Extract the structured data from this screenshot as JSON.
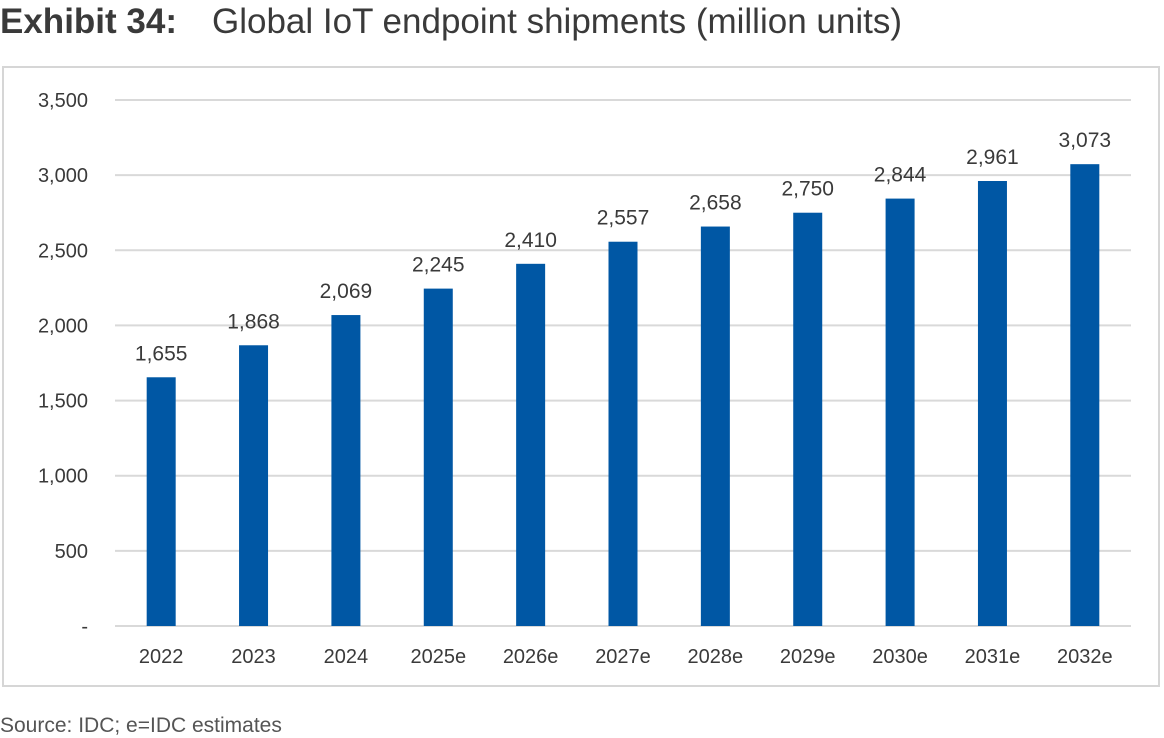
{
  "header": {
    "exhibit_label": "Exhibit 34:",
    "title": "Global IoT endpoint shipments (million units)"
  },
  "footer": {
    "source": "Source: IDC; e=IDC estimates"
  },
  "colors": {
    "bar": "#0057a4",
    "gridline": "#d9d9d9",
    "text": "#3a3a3a",
    "frame": "#d6d6d6"
  },
  "chart_data": {
    "type": "bar",
    "title": "Global IoT endpoint shipments (million units)",
    "xlabel": "",
    "ylabel": "",
    "categories": [
      "2022",
      "2023",
      "2024",
      "2025e",
      "2026e",
      "2027e",
      "2028e",
      "2029e",
      "2030e",
      "2031e",
      "2032e"
    ],
    "values": [
      1655,
      1868,
      2069,
      2245,
      2410,
      2557,
      2658,
      2750,
      2844,
      2961,
      3073
    ],
    "value_labels": [
      "1,655",
      "1,868",
      "2,069",
      "2,245",
      "2,410",
      "2,557",
      "2,658",
      "2,750",
      "2,844",
      "2,961",
      "3,073"
    ],
    "ylim": [
      0,
      3500
    ],
    "yticks": [
      0,
      500,
      1000,
      1500,
      2000,
      2500,
      3000,
      3500
    ],
    "ytick_labels": [
      "-",
      "500",
      "1,000",
      "1,500",
      "2,000",
      "2,500",
      "3,000",
      "3,500"
    ],
    "grid": true,
    "legend": "none"
  }
}
